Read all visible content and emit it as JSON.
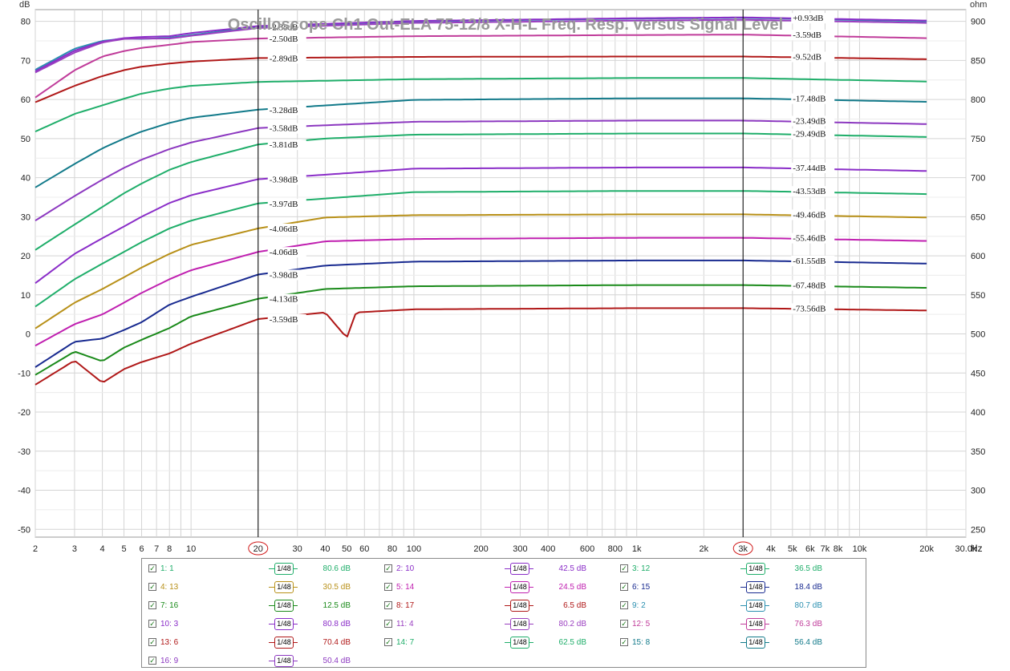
{
  "chart_data": {
    "type": "line",
    "title": "Oscilloscope Ch1 Out-ELA 75-12/8 X-H-L Freq. Resp. versus Signal Level",
    "x_scale": "log",
    "xlim": [
      2,
      30000
    ],
    "ylim": [
      -52,
      83
    ],
    "y2lim": [
      240,
      915
    ],
    "y_unit": "dB",
    "y2_unit": "ohm",
    "x_unit": "Hz",
    "x_ticks": [
      2,
      3,
      4,
      5,
      6,
      7,
      8,
      10,
      20,
      30,
      40,
      50,
      60,
      80,
      100,
      200,
      300,
      400,
      600,
      800,
      1000,
      2000,
      3000,
      4000,
      5000,
      6000,
      7000,
      8000,
      10000,
      20000,
      30000
    ],
    "x_tick_labels": [
      "2",
      "3",
      "4",
      "5",
      "6",
      "7",
      "8",
      "10",
      "20",
      "30",
      "40",
      "50",
      "60",
      "80",
      "100",
      "200",
      "300",
      "400",
      "600",
      "800",
      "1k",
      "2k",
      "3k",
      "4k",
      "5k",
      "6k",
      "7k",
      "8k",
      "10k",
      "20k",
      "30.0k"
    ],
    "y_ticks": [
      80,
      70,
      60,
      50,
      40,
      30,
      20,
      10,
      0,
      -10,
      -20,
      -30,
      -40,
      -50
    ],
    "y2_ticks": [
      900,
      850,
      800,
      750,
      700,
      650,
      600,
      550,
      500,
      450,
      400,
      350,
      300,
      250
    ],
    "grid": true,
    "cursors": [
      {
        "freq": 20,
        "label": "20"
      },
      {
        "freq": 3000,
        "label": "3k"
      }
    ],
    "series": [
      {
        "id": "9",
        "name": "9: 2",
        "color": "#2a8fb0",
        "level": "80.7 dB",
        "points": [
          [
            2,
            67.6
          ],
          [
            3,
            73
          ],
          [
            4,
            75
          ],
          [
            5,
            75.6
          ],
          [
            6,
            75.5
          ],
          [
            8,
            75.8
          ],
          [
            10,
            76.5
          ],
          [
            20,
            78.6
          ],
          [
            100,
            80
          ],
          [
            1000,
            80.7
          ],
          [
            3000,
            80.9
          ],
          [
            20000,
            80
          ]
        ],
        "label_20": "-2.35dB",
        "label_3k": "+0.93dB"
      },
      {
        "id": "10",
        "name": "10: 3",
        "color": "#8a2dc8",
        "level": "80.8 dB",
        "points": [
          [
            2,
            67.2
          ],
          [
            3,
            72.5
          ],
          [
            4,
            74.8
          ],
          [
            5,
            75.7
          ],
          [
            6,
            76
          ],
          [
            8,
            76.2
          ],
          [
            10,
            77
          ],
          [
            20,
            78.8
          ],
          [
            100,
            80.1
          ],
          [
            1000,
            80.8
          ],
          [
            3000,
            81
          ],
          [
            20000,
            80.2
          ]
        ]
      },
      {
        "id": "11",
        "name": "11: 4",
        "color": "#9a3fc0",
        "level": "80.2 dB",
        "points": [
          [
            2,
            66.9
          ],
          [
            3,
            72
          ],
          [
            4,
            74.6
          ],
          [
            5,
            75.5
          ],
          [
            6,
            75.6
          ],
          [
            8,
            75.6
          ],
          [
            10,
            76.3
          ],
          [
            20,
            78.3
          ],
          [
            100,
            79.6
          ],
          [
            1000,
            80.2
          ],
          [
            3000,
            80.4
          ],
          [
            20000,
            79.6
          ]
        ]
      },
      {
        "id": "12",
        "name": "12: 5",
        "color": "#c03c9a",
        "level": "76.3 dB",
        "points": [
          [
            2,
            60.5
          ],
          [
            3,
            67.5
          ],
          [
            4,
            71
          ],
          [
            5,
            72.4
          ],
          [
            6,
            73.2
          ],
          [
            8,
            74
          ],
          [
            10,
            74.7
          ],
          [
            20,
            75.6
          ],
          [
            100,
            76.2
          ],
          [
            1000,
            76.5
          ],
          [
            3000,
            76.6
          ],
          [
            20000,
            75.7
          ]
        ],
        "label_20": "-2.50dB",
        "label_3k": "-3.59dB"
      },
      {
        "id": "13",
        "name": "13: 6",
        "color": "#b01818",
        "level": "70.4 dB",
        "points": [
          [
            2,
            59.3
          ],
          [
            3,
            63.5
          ],
          [
            4,
            66
          ],
          [
            5,
            67.5
          ],
          [
            6,
            68.4
          ],
          [
            8,
            69.2
          ],
          [
            10,
            69.7
          ],
          [
            20,
            70.6
          ],
          [
            100,
            70.9
          ],
          [
            1000,
            71
          ],
          [
            3000,
            71
          ],
          [
            20000,
            70.3
          ]
        ],
        "label_20": "-2.89dB",
        "label_3k": "-9.52dB"
      },
      {
        "id": "14",
        "name": "14: 7",
        "color": "#1fae6a",
        "level": "62.5 dB",
        "points": [
          [
            2,
            51.8
          ],
          [
            3,
            56.3
          ],
          [
            4,
            58.5
          ],
          [
            5,
            60.2
          ],
          [
            6,
            61.5
          ],
          [
            8,
            62.8
          ],
          [
            10,
            63.5
          ],
          [
            20,
            64.5
          ],
          [
            100,
            65.2
          ],
          [
            1000,
            65.5
          ],
          [
            3000,
            65.5
          ],
          [
            20000,
            64.6
          ]
        ]
      },
      {
        "id": "15",
        "name": "15: 8",
        "color": "#127a8a",
        "level": "56.4 dB",
        "points": [
          [
            2,
            37.5
          ],
          [
            3,
            43.5
          ],
          [
            4,
            47.5
          ],
          [
            5,
            50
          ],
          [
            6,
            51.8
          ],
          [
            8,
            54
          ],
          [
            10,
            55.3
          ],
          [
            20,
            57.4
          ],
          [
            100,
            59.9
          ],
          [
            1000,
            60.3
          ],
          [
            3000,
            60.3
          ],
          [
            20000,
            59.4
          ]
        ],
        "label_20": "-3.28dB",
        "label_3k": "-17.48dB"
      },
      {
        "id": "16",
        "name": "16: 9",
        "color": "#8c38c0",
        "level": "50.4 dB",
        "points": [
          [
            2,
            29
          ],
          [
            3,
            35.3
          ],
          [
            4,
            39.5
          ],
          [
            5,
            42.5
          ],
          [
            6,
            44.6
          ],
          [
            8,
            47.3
          ],
          [
            10,
            49
          ],
          [
            20,
            52.7
          ],
          [
            100,
            54.3
          ],
          [
            1000,
            54.6
          ],
          [
            3000,
            54.6
          ],
          [
            20000,
            53.7
          ]
        ],
        "label_20": "-3.58dB",
        "label_3k": "-23.49dB"
      },
      {
        "id": "1",
        "name": "1: 1",
        "color": "#1fae6a",
        "level": "80.6 dB",
        "points": [
          [
            2,
            21.5
          ],
          [
            3,
            28
          ],
          [
            4,
            32.5
          ],
          [
            5,
            36
          ],
          [
            6,
            38.5
          ],
          [
            8,
            42
          ],
          [
            10,
            44
          ],
          [
            20,
            48.5
          ],
          [
            40,
            50
          ],
          [
            100,
            51
          ],
          [
            1000,
            51.3
          ],
          [
            3000,
            51.3
          ],
          [
            20000,
            50.4
          ]
        ],
        "label_20": "-3.81dB",
        "label_3k": "-29.49dB"
      },
      {
        "id": "2",
        "name": "2: 10",
        "color": "#8a2dc8",
        "level": "42.5 dB",
        "points": [
          [
            2,
            13
          ],
          [
            3,
            20.5
          ],
          [
            4,
            24.5
          ],
          [
            5,
            27.5
          ],
          [
            6,
            30
          ],
          [
            8,
            33.5
          ],
          [
            10,
            35.5
          ],
          [
            20,
            39.6
          ],
          [
            100,
            42.3
          ],
          [
            1000,
            42.6
          ],
          [
            3000,
            42.6
          ],
          [
            20000,
            41.7
          ]
        ],
        "label_20": "-3.98dB",
        "label_3k": "-37.44dB"
      },
      {
        "id": "3",
        "name": "3: 12",
        "color": "#1fae6a",
        "level": "36.5 dB",
        "points": [
          [
            2,
            7
          ],
          [
            3,
            14
          ],
          [
            4,
            18
          ],
          [
            5,
            21
          ],
          [
            6,
            23.5
          ],
          [
            8,
            27
          ],
          [
            10,
            29
          ],
          [
            20,
            33.4
          ],
          [
            100,
            36.3
          ],
          [
            1000,
            36.6
          ],
          [
            3000,
            36.6
          ],
          [
            20000,
            35.8
          ]
        ],
        "label_20": "-3.97dB",
        "label_3k": "-43.53dB"
      },
      {
        "id": "4",
        "name": "4: 13",
        "color": "#b89018",
        "level": "30.5 dB",
        "points": [
          [
            2,
            1.4
          ],
          [
            3,
            8
          ],
          [
            4,
            11.5
          ],
          [
            5,
            14.5
          ],
          [
            6,
            17
          ],
          [
            8,
            20.5
          ],
          [
            10,
            22.8
          ],
          [
            20,
            27
          ],
          [
            40,
            29.8
          ],
          [
            100,
            30.4
          ],
          [
            1000,
            30.6
          ],
          [
            3000,
            30.6
          ],
          [
            20000,
            29.8
          ]
        ],
        "label_20": "-4.06dB",
        "label_3k": "-49.46dB"
      },
      {
        "id": "5",
        "name": "5: 14",
        "color": "#c020b0",
        "level": "24.5 dB",
        "points": [
          [
            2,
            -3
          ],
          [
            3,
            2.5
          ],
          [
            4,
            5
          ],
          [
            5,
            8
          ],
          [
            6,
            10.5
          ],
          [
            8,
            14
          ],
          [
            10,
            16.3
          ],
          [
            20,
            21
          ],
          [
            40,
            23.7
          ],
          [
            100,
            24.3
          ],
          [
            1000,
            24.6
          ],
          [
            3000,
            24.6
          ],
          [
            20000,
            23.8
          ]
        ],
        "label_20": "-4.06dB",
        "label_3k": "-55.46dB"
      },
      {
        "id": "6",
        "name": "6: 15",
        "color": "#182a90",
        "level": "18.4 dB",
        "points": [
          [
            2,
            -8.5
          ],
          [
            3,
            -2
          ],
          [
            4,
            -1.2
          ],
          [
            5,
            1
          ],
          [
            6,
            3
          ],
          [
            8,
            7.5
          ],
          [
            10,
            9.5
          ],
          [
            20,
            15.2
          ],
          [
            40,
            17.5
          ],
          [
            100,
            18.5
          ],
          [
            1000,
            18.8
          ],
          [
            3000,
            18.8
          ],
          [
            20000,
            18
          ]
        ],
        "label_20": "-3.98dB",
        "label_3k": "-61.55dB"
      },
      {
        "id": "7",
        "name": "7: 16",
        "color": "#1a8a1a",
        "level": "12.5 dB",
        "points": [
          [
            2,
            -10.5
          ],
          [
            3,
            -4.5
          ],
          [
            4,
            -7
          ],
          [
            5,
            -3.5
          ],
          [
            6,
            -1.5
          ],
          [
            8,
            1.5
          ],
          [
            10,
            4.5
          ],
          [
            20,
            9
          ],
          [
            40,
            11.5
          ],
          [
            100,
            12.2
          ],
          [
            1000,
            12.5
          ],
          [
            3000,
            12.5
          ],
          [
            20000,
            11.8
          ]
        ],
        "label_20": "-4.13dB",
        "label_3k": "-67.48dB"
      },
      {
        "id": "8",
        "name": "8: 17",
        "color": "#b01818",
        "level": "6.5 dB",
        "points": [
          [
            2,
            -13
          ],
          [
            3,
            -6.8
          ],
          [
            4,
            -12.5
          ],
          [
            5,
            -9
          ],
          [
            6,
            -7.2
          ],
          [
            8,
            -5
          ],
          [
            10,
            -2.5
          ],
          [
            20,
            3.8
          ],
          [
            40,
            5.5
          ],
          [
            50,
            -1
          ],
          [
            55,
            5.5
          ],
          [
            100,
            6.3
          ],
          [
            1000,
            6.6
          ],
          [
            3000,
            6.6
          ],
          [
            20000,
            6
          ]
        ],
        "label_20": "-3.59dB",
        "label_3k": "-73.56dB"
      }
    ]
  },
  "legend": {
    "smoothing_label": "1/48",
    "checkmark": "✓"
  }
}
